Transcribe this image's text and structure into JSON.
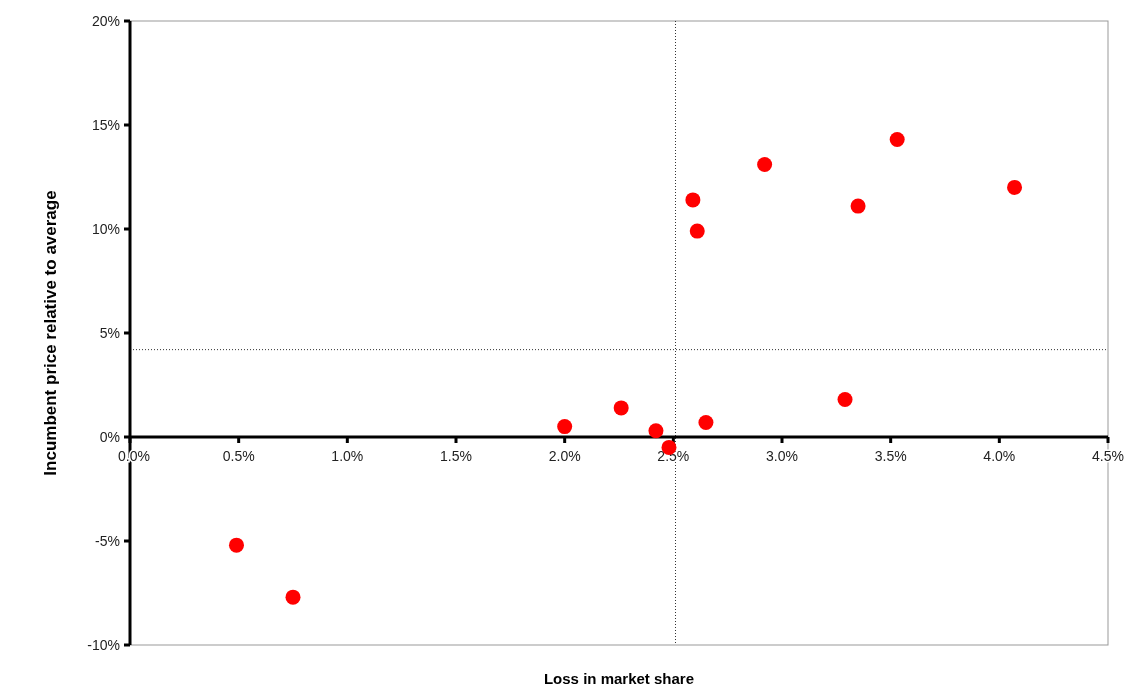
{
  "chart_data": {
    "type": "scatter",
    "xlabel": "Loss in market share",
    "ylabel": "Incumbent price relative to average",
    "x": [
      0.49,
      0.75,
      2.0,
      2.26,
      2.42,
      2.48,
      2.65,
      2.59,
      2.61,
      2.92,
      3.29,
      3.35,
      3.53,
      4.07
    ],
    "series": [
      {
        "color": "#ff0000",
        "values": [
          -5.2,
          -7.7,
          0.5,
          1.4,
          0.3,
          -0.5,
          0.7,
          11.4,
          9.9,
          13.1,
          1.8,
          11.1,
          14.3,
          12.0
        ]
      }
    ],
    "marker": "circle",
    "grid": false,
    "xlim": [
      0,
      4.5
    ],
    "ylim": [
      -10,
      20
    ],
    "xticks": [
      {
        "value": 0,
        "label": "0.0%"
      },
      {
        "value": 0.5,
        "label": "0.5%"
      },
      {
        "value": 1,
        "label": "1.0%"
      },
      {
        "value": 1.5,
        "label": "1.5%"
      },
      {
        "value": 2,
        "label": "2.0%"
      },
      {
        "value": 2.5,
        "label": "2.5%"
      },
      {
        "value": 3,
        "label": "3.0%"
      },
      {
        "value": 3.5,
        "label": "3.5%"
      },
      {
        "value": 4,
        "label": "4.0%"
      },
      {
        "value": 4.5,
        "label": "4.5%"
      }
    ],
    "yticks": [
      {
        "value": -10,
        "label": "-10%"
      },
      {
        "value": -5,
        "label": "-5%"
      },
      {
        "value": 0,
        "label": "0%"
      },
      {
        "value": 5,
        "label": "5%"
      },
      {
        "value": 10,
        "label": "10%"
      },
      {
        "value": 15,
        "label": "15%"
      },
      {
        "value": 20,
        "label": "20%"
      }
    ],
    "ref_lines": [
      {
        "axis": "x",
        "value": 2.51,
        "color": "#333333",
        "line_style": "dotted"
      },
      {
        "axis": "y",
        "value": 4.2,
        "color": "#333333",
        "line_style": "dotted"
      }
    ]
  }
}
